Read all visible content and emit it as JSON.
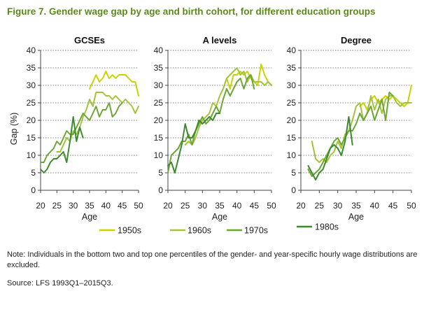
{
  "title": "Figure 7. Gender wage gap by age and birth cohort, for different education groups",
  "note": "Note: Individuals in the bottom two and top one percentiles of the gender- and year-specific hourly wage distributions are excluded.",
  "source": "Source: LFS 1993Q1–2015Q3.",
  "colors": {
    "1950s": "#c8d400",
    "1960s": "#a3c43a",
    "1970s": "#6da536",
    "1980s": "#3c8a2e",
    "title": "#5a8a1c"
  },
  "chart_data": [
    {
      "type": "line",
      "title": "GCSEs",
      "xlabel": "Age",
      "ylabel": "Gap (%)",
      "xlim": [
        20,
        50
      ],
      "ylim": [
        0,
        40
      ],
      "xticks": [
        20,
        25,
        30,
        35,
        40,
        45,
        50
      ],
      "yticks": [
        0,
        5,
        10,
        15,
        20,
        25,
        30,
        35,
        40
      ],
      "grid": "horizontal-dotted",
      "series": [
        {
          "name": "1950s",
          "color": "#c8d400",
          "x": [
            35,
            36,
            37,
            38,
            39,
            40,
            41,
            42,
            43,
            44,
            45,
            46,
            47,
            48,
            49,
            50
          ],
          "y": [
            29,
            31,
            33,
            31,
            32,
            34,
            32,
            33,
            32,
            33,
            33,
            33,
            32,
            31,
            31,
            27
          ]
        },
        {
          "name": "1960s",
          "color": "#a3c43a",
          "x": [
            25,
            26,
            27,
            28,
            29,
            30,
            31,
            32,
            33,
            34,
            35,
            36,
            37,
            38,
            39,
            40,
            41,
            42,
            43,
            44,
            45,
            46,
            47,
            48,
            49,
            50
          ],
          "y": [
            11,
            11,
            13,
            15,
            14,
            17,
            16,
            18,
            21,
            23,
            26,
            24,
            28,
            28,
            28,
            27,
            27,
            26,
            27,
            26,
            25,
            26,
            25,
            24,
            22,
            24
          ]
        },
        {
          "name": "1970s",
          "color": "#6da536",
          "x": [
            20,
            21,
            22,
            23,
            24,
            25,
            26,
            27,
            28,
            29,
            30,
            31,
            32,
            33,
            34,
            35,
            36,
            37,
            38,
            39,
            40,
            41,
            42,
            43,
            44,
            45
          ],
          "y": [
            8,
            8,
            10,
            11,
            12,
            14,
            13,
            15,
            17,
            16,
            16,
            18,
            20,
            22,
            21,
            20,
            22,
            24,
            21,
            23,
            23,
            25,
            21,
            22,
            24,
            25
          ]
        },
        {
          "name": "1980s",
          "color": "#3c8a2e",
          "x": [
            20,
            21,
            22,
            23,
            24,
            25,
            26,
            27,
            28,
            29,
            30,
            31,
            32,
            33
          ],
          "y": [
            6,
            5,
            6,
            8,
            9,
            9,
            10,
            11,
            8,
            14,
            21,
            14,
            18,
            15
          ]
        }
      ]
    },
    {
      "type": "line",
      "title": "A levels",
      "xlabel": "Age",
      "ylabel": "",
      "xlim": [
        20,
        50
      ],
      "ylim": [
        0,
        40
      ],
      "xticks": [
        20,
        25,
        30,
        35,
        40,
        45,
        50
      ],
      "yticks": [
        0,
        5,
        10,
        15,
        20,
        25,
        30,
        35,
        40
      ],
      "grid": "horizontal-dotted",
      "series": [
        {
          "name": "1950s",
          "color": "#c8d400",
          "x": [
            37,
            38,
            39,
            40,
            41,
            42,
            43,
            44,
            45,
            46,
            47,
            48,
            49,
            50
          ],
          "y": [
            32,
            29,
            33,
            33,
            34,
            33,
            34,
            32,
            31,
            30,
            36,
            33,
            31,
            30
          ]
        },
        {
          "name": "1960s",
          "color": "#a3c43a",
          "x": [
            25,
            26,
            27,
            28,
            29,
            30,
            31,
            32,
            33,
            34,
            35,
            36,
            37,
            38,
            39,
            40,
            41,
            42,
            43,
            44,
            45,
            46,
            47,
            48,
            49,
            50
          ],
          "y": [
            13,
            14,
            13,
            15,
            18,
            20,
            21,
            22,
            25,
            24,
            27,
            29,
            32,
            33,
            34,
            35,
            33,
            34,
            31,
            33,
            31,
            31,
            31,
            30,
            31,
            30
          ]
        },
        {
          "name": "1970s",
          "color": "#6da536",
          "x": [
            20,
            21,
            22,
            23,
            24,
            25,
            26,
            27,
            28,
            29,
            30,
            31,
            32,
            33,
            34,
            35,
            36,
            37,
            38,
            39,
            40,
            41,
            42,
            43,
            44,
            45
          ],
          "y": [
            5,
            10,
            11,
            12,
            14,
            14,
            16,
            13,
            17,
            19,
            21,
            19,
            20,
            22,
            24,
            22,
            26,
            29,
            27,
            29,
            31,
            32,
            29,
            32,
            33,
            29
          ]
        },
        {
          "name": "1980s",
          "color": "#3c8a2e",
          "x": [
            20,
            21,
            22,
            23,
            24,
            25,
            26,
            27,
            28,
            29,
            30,
            31,
            32,
            33,
            34,
            35
          ],
          "y": [
            7,
            8,
            5,
            9,
            13,
            19,
            15,
            15,
            17,
            20,
            19,
            20,
            21,
            20,
            22,
            22
          ]
        }
      ]
    },
    {
      "type": "line",
      "title": "Degree",
      "xlabel": "Age",
      "ylabel": "",
      "xlim": [
        20,
        50
      ],
      "ylim": [
        0,
        40
      ],
      "xticks": [
        20,
        25,
        30,
        35,
        40,
        45,
        50
      ],
      "yticks": [
        0,
        5,
        10,
        15,
        20,
        25,
        30,
        35,
        40
      ],
      "grid": "horizontal-dotted",
      "series": [
        {
          "name": "1950s",
          "color": "#c8d400",
          "x": [
            36,
            37,
            38,
            39,
            40,
            41,
            42,
            43,
            44,
            45,
            46,
            47,
            48,
            49,
            50
          ],
          "y": [
            24,
            25,
            23,
            26,
            27,
            25,
            26,
            27,
            26,
            27,
            26,
            25,
            24,
            25,
            30
          ]
        },
        {
          "name": "1960s",
          "color": "#a3c43a",
          "x": [
            23,
            24,
            25,
            26,
            27,
            28,
            29,
            30,
            31,
            32,
            33,
            34,
            35,
            36,
            37,
            38,
            39,
            40,
            41,
            42,
            43,
            44,
            45,
            46,
            47,
            48,
            49,
            50
          ],
          "y": [
            14,
            9,
            8,
            9,
            8,
            10,
            11,
            14,
            12,
            16,
            17,
            20,
            24,
            25,
            20,
            22,
            27,
            23,
            26,
            22,
            26,
            27,
            27,
            25,
            24,
            25,
            25,
            25
          ]
        },
        {
          "name": "1970s",
          "color": "#6da536",
          "x": [
            22,
            23,
            24,
            25,
            26,
            27,
            28,
            29,
            30,
            31,
            32,
            33,
            34,
            35,
            36,
            37,
            38,
            39,
            40,
            41,
            42,
            43,
            44,
            45
          ],
          "y": [
            6,
            4,
            5,
            6,
            8,
            10,
            12,
            14,
            15,
            13,
            15,
            17,
            17,
            19,
            22,
            20,
            22,
            24,
            20,
            23,
            26,
            20,
            28,
            27
          ]
        },
        {
          "name": "1980s",
          "color": "#3c8a2e",
          "x": [
            22,
            23,
            24,
            25,
            26,
            27,
            28,
            29,
            30,
            31,
            32,
            33,
            34
          ],
          "y": [
            7,
            5,
            3,
            5,
            6,
            9,
            12,
            13,
            12,
            10,
            14,
            21,
            13
          ]
        }
      ]
    }
  ],
  "legend": [
    {
      "label": "1950s",
      "color": "#c8d400"
    },
    {
      "label": "1960s",
      "color": "#a3c43a"
    },
    {
      "label": "1970s",
      "color": "#6da536"
    },
    {
      "label": "1980s",
      "color": "#3c8a2e"
    }
  ]
}
